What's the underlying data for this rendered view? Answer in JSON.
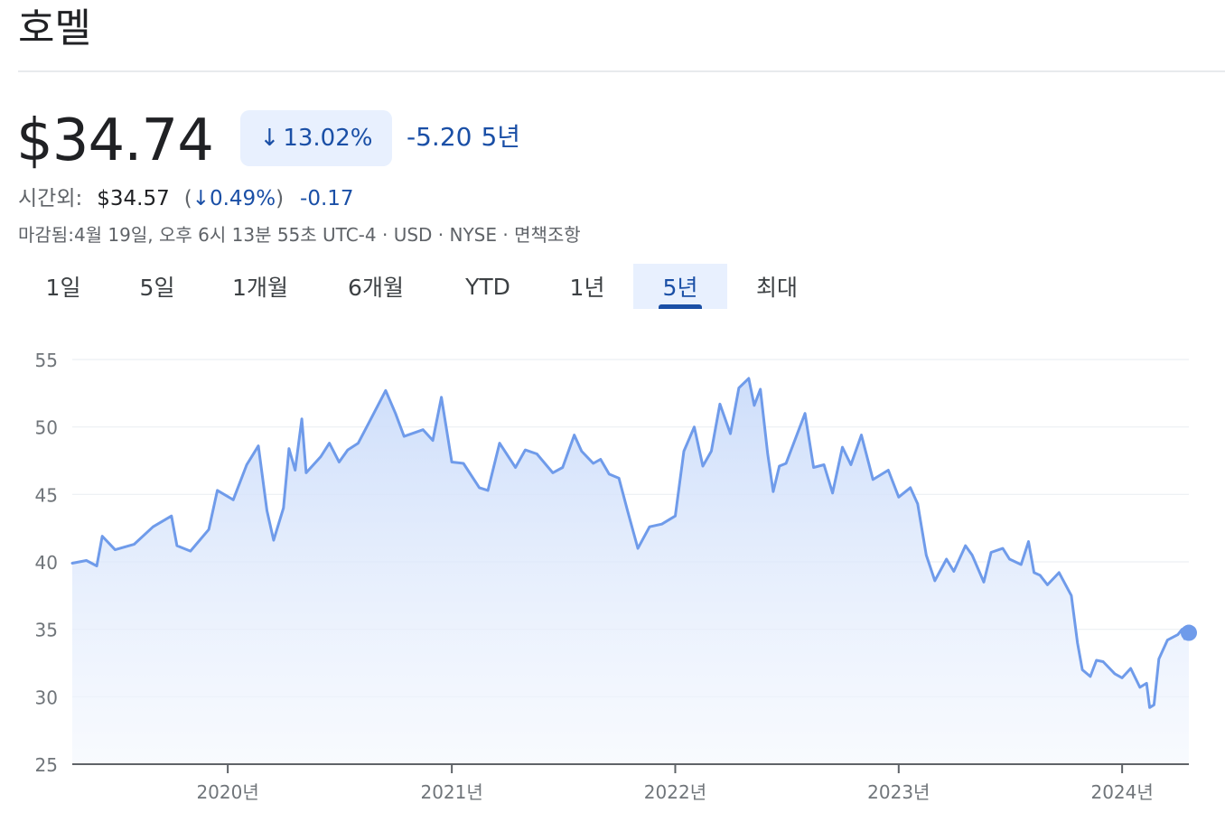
{
  "company_name": "호멜",
  "quote": {
    "price": "$34.74",
    "change_percent": "13.02%",
    "change_direction": "down",
    "change_value": "-5.20",
    "change_period": "5년"
  },
  "after_hours": {
    "label": "시간외:",
    "price": "$34.57",
    "open_paren": "(",
    "change_percent": "0.49%",
    "close_paren": ")",
    "change_value": "-0.17"
  },
  "meta": "마감됨:4월 19일, 오후 6시 13분 55초 UTC-4 · USD · NYSE · 면책조항",
  "tabs": [
    {
      "label": "1일",
      "active": false
    },
    {
      "label": "5일",
      "active": false
    },
    {
      "label": "1개월",
      "active": false
    },
    {
      "label": "6개월",
      "active": false
    },
    {
      "label": "YTD",
      "active": false
    },
    {
      "label": "1년",
      "active": false
    },
    {
      "label": "5년",
      "active": true
    },
    {
      "label": "최대",
      "active": false
    }
  ],
  "colors": {
    "line": "#6f9bea",
    "accent": "#1a4fa6",
    "chip_bg": "#e8f0fe",
    "grid": "#eceff3",
    "axis": "#70757a"
  },
  "chart_data": {
    "type": "area",
    "y_ticks": [
      55,
      50,
      45,
      40,
      35,
      30,
      25
    ],
    "ylim": [
      25,
      55
    ],
    "xlim": [
      "2019-04-22",
      "2024-04-19"
    ],
    "x_ticks": [
      {
        "label": "2020년",
        "date": "2020-01-01"
      },
      {
        "label": "2021년",
        "date": "2021-01-01"
      },
      {
        "label": "2022년",
        "date": "2022-01-01"
      },
      {
        "label": "2023년",
        "date": "2023-01-01"
      },
      {
        "label": "2024년",
        "date": "2024-01-01"
      }
    ],
    "grid": true,
    "series": [
      {
        "points": [
          [
            "2019-04-22",
            39.9
          ],
          [
            "2019-05-15",
            40.1
          ],
          [
            "2019-06-01",
            39.7
          ],
          [
            "2019-06-10",
            41.9
          ],
          [
            "2019-07-01",
            40.9
          ],
          [
            "2019-08-01",
            41.3
          ],
          [
            "2019-09-01",
            42.6
          ],
          [
            "2019-10-01",
            43.4
          ],
          [
            "2019-10-10",
            41.2
          ],
          [
            "2019-11-01",
            40.8
          ],
          [
            "2019-12-01",
            42.4
          ],
          [
            "2019-12-15",
            45.3
          ],
          [
            "2020-01-10",
            44.6
          ],
          [
            "2020-02-01",
            47.2
          ],
          [
            "2020-02-20",
            48.6
          ],
          [
            "2020-03-05",
            43.8
          ],
          [
            "2020-03-16",
            41.6
          ],
          [
            "2020-04-01",
            44.0
          ],
          [
            "2020-04-10",
            48.4
          ],
          [
            "2020-04-20",
            46.8
          ],
          [
            "2020-05-01",
            50.6
          ],
          [
            "2020-05-08",
            46.6
          ],
          [
            "2020-06-01",
            47.8
          ],
          [
            "2020-06-15",
            48.8
          ],
          [
            "2020-07-01",
            47.4
          ],
          [
            "2020-07-15",
            48.3
          ],
          [
            "2020-08-01",
            48.8
          ],
          [
            "2020-08-15",
            50.0
          ],
          [
            "2020-09-15",
            52.7
          ],
          [
            "2020-10-01",
            51.0
          ],
          [
            "2020-10-15",
            49.3
          ],
          [
            "2020-11-15",
            49.8
          ],
          [
            "2020-12-01",
            49.0
          ],
          [
            "2020-12-15",
            52.2
          ],
          [
            "2021-01-01",
            47.4
          ],
          [
            "2021-01-20",
            47.3
          ],
          [
            "2021-02-15",
            45.5
          ],
          [
            "2021-03-01",
            45.3
          ],
          [
            "2021-03-20",
            48.8
          ],
          [
            "2021-04-15",
            47.0
          ],
          [
            "2021-05-01",
            48.3
          ],
          [
            "2021-05-20",
            48.0
          ],
          [
            "2021-06-15",
            46.6
          ],
          [
            "2021-07-01",
            47.0
          ],
          [
            "2021-07-20",
            49.4
          ],
          [
            "2021-08-01",
            48.2
          ],
          [
            "2021-08-20",
            47.3
          ],
          [
            "2021-09-01",
            47.6
          ],
          [
            "2021-09-15",
            46.5
          ],
          [
            "2021-10-01",
            46.2
          ],
          [
            "2021-10-15",
            43.8
          ],
          [
            "2021-11-01",
            41.0
          ],
          [
            "2021-11-20",
            42.6
          ],
          [
            "2021-12-10",
            42.8
          ],
          [
            "2022-01-01",
            43.4
          ],
          [
            "2022-01-15",
            48.2
          ],
          [
            "2022-02-01",
            50.0
          ],
          [
            "2022-02-15",
            47.1
          ],
          [
            "2022-03-01",
            48.2
          ],
          [
            "2022-03-15",
            51.7
          ],
          [
            "2022-04-01",
            49.5
          ],
          [
            "2022-04-15",
            52.9
          ],
          [
            "2022-05-01",
            53.6
          ],
          [
            "2022-05-10",
            51.6
          ],
          [
            "2022-05-20",
            52.8
          ],
          [
            "2022-06-01",
            48.0
          ],
          [
            "2022-06-10",
            45.2
          ],
          [
            "2022-06-20",
            47.1
          ],
          [
            "2022-07-01",
            47.3
          ],
          [
            "2022-08-01",
            51.0
          ],
          [
            "2022-08-15",
            47.0
          ],
          [
            "2022-09-01",
            47.2
          ],
          [
            "2022-09-15",
            45.1
          ],
          [
            "2022-10-01",
            48.5
          ],
          [
            "2022-10-15",
            47.2
          ],
          [
            "2022-11-01",
            49.4
          ],
          [
            "2022-11-20",
            46.1
          ],
          [
            "2022-12-15",
            46.8
          ],
          [
            "2023-01-01",
            44.8
          ],
          [
            "2023-01-20",
            45.5
          ],
          [
            "2023-02-01",
            44.3
          ],
          [
            "2023-02-15",
            40.5
          ],
          [
            "2023-03-01",
            38.6
          ],
          [
            "2023-03-20",
            40.2
          ],
          [
            "2023-04-01",
            39.3
          ],
          [
            "2023-04-20",
            41.2
          ],
          [
            "2023-05-01",
            40.5
          ],
          [
            "2023-05-20",
            38.5
          ],
          [
            "2023-06-01",
            40.7
          ],
          [
            "2023-06-20",
            41.0
          ],
          [
            "2023-07-01",
            40.2
          ],
          [
            "2023-07-20",
            39.8
          ],
          [
            "2023-08-01",
            41.5
          ],
          [
            "2023-08-10",
            39.2
          ],
          [
            "2023-08-20",
            39.0
          ],
          [
            "2023-09-01",
            38.3
          ],
          [
            "2023-09-20",
            39.2
          ],
          [
            "2023-10-10",
            37.5
          ],
          [
            "2023-10-20",
            34.0
          ],
          [
            "2023-10-28",
            32.0
          ],
          [
            "2023-11-10",
            31.5
          ],
          [
            "2023-11-20",
            32.7
          ],
          [
            "2023-12-01",
            32.6
          ],
          [
            "2023-12-20",
            31.7
          ],
          [
            "2024-01-01",
            31.4
          ],
          [
            "2024-01-15",
            32.1
          ],
          [
            "2024-01-30",
            30.7
          ],
          [
            "2024-02-10",
            31.0
          ],
          [
            "2024-02-15",
            29.2
          ],
          [
            "2024-02-22",
            29.4
          ],
          [
            "2024-03-01",
            32.8
          ],
          [
            "2024-03-15",
            34.2
          ],
          [
            "2024-04-01",
            34.6
          ],
          [
            "2024-04-08",
            35.0
          ],
          [
            "2024-04-12",
            34.3
          ],
          [
            "2024-04-19",
            34.74
          ]
        ]
      }
    ]
  }
}
